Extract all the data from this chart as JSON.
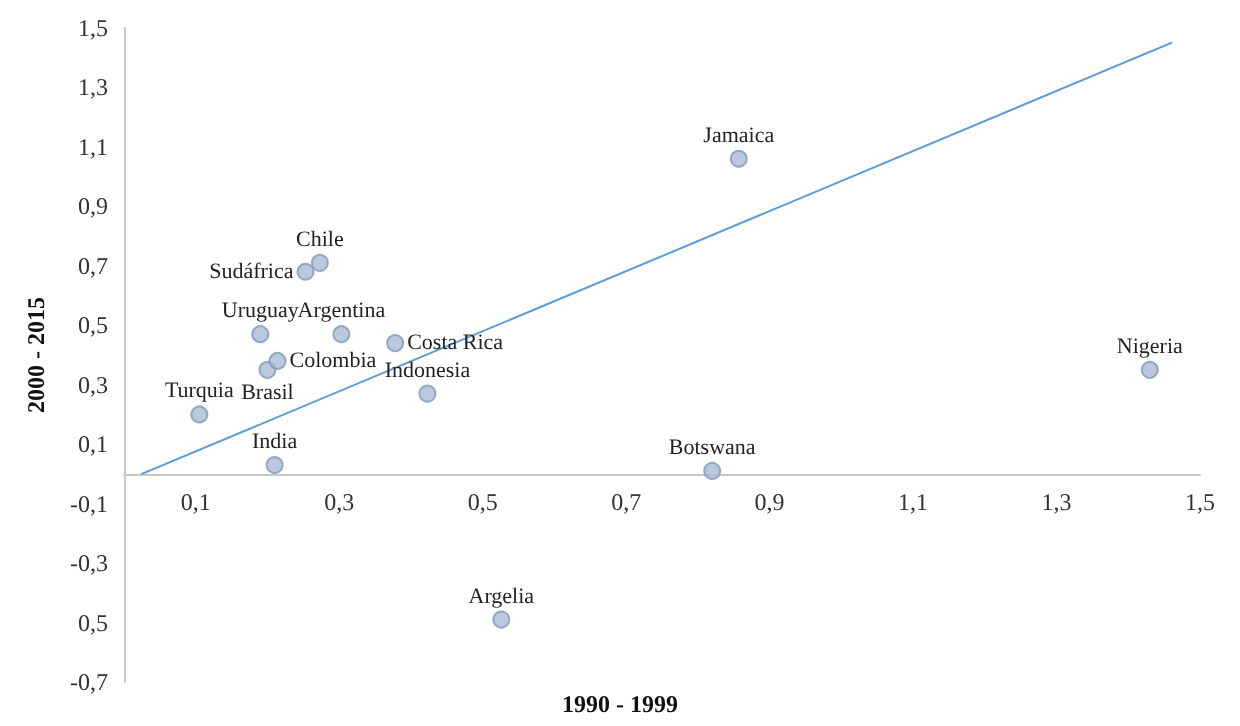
{
  "chart_data": {
    "type": "scatter",
    "xlabel": "1990 - 1999",
    "ylabel": "2000 - 2015",
    "xlim": [
      0,
      1.5
    ],
    "xticks": [
      {
        "value": 0.1,
        "label": "0,1"
      },
      {
        "value": 0.3,
        "label": "0,3"
      },
      {
        "value": 0.5,
        "label": "0,5"
      },
      {
        "value": 0.7,
        "label": "0,7"
      },
      {
        "value": 0.9,
        "label": "0,9"
      },
      {
        "value": 1.1,
        "label": "1,1"
      },
      {
        "value": 1.3,
        "label": "1,3"
      },
      {
        "value": 1.5,
        "label": "1,5"
      }
    ],
    "ylim": [
      -0.7,
      1.5
    ],
    "yticks": [
      {
        "value": 1.5,
        "label": "1,5"
      },
      {
        "value": 1.3,
        "label": "1,3"
      },
      {
        "value": 1.1,
        "label": "1,1"
      },
      {
        "value": 0.9,
        "label": "0,9"
      },
      {
        "value": 0.7,
        "label": "0,7"
      },
      {
        "value": 0.5,
        "label": "0,5"
      },
      {
        "value": 0.3,
        "label": "0,3"
      },
      {
        "value": 0.1,
        "label": "0,1"
      },
      {
        "value": -0.1,
        "label": "-0,1"
      },
      {
        "value": -0.3,
        "label": "-0,3"
      },
      {
        "value": -0.5,
        "label": "0,5"
      },
      {
        "value": -0.7,
        "label": "-0,7"
      }
    ],
    "grid": false,
    "marker": "circle",
    "series": [
      {
        "color": "#a9bcd4",
        "x": [
          0.857,
          1.43,
          0.82,
          0.526,
          0.21,
          0.105,
          0.2,
          0.214,
          0.19,
          0.253,
          0.273,
          0.303,
          0.378,
          0.423
        ],
        "values": [
          1.06,
          0.35,
          0.01,
          -0.49,
          0.03,
          0.2,
          0.35,
          0.38,
          0.47,
          0.68,
          0.71,
          0.47,
          0.44,
          0.27
        ]
      },
      {
        "type": "line",
        "marker": "none",
        "color": "#5b9bd5",
        "x": [
          0.025,
          1.46
        ],
        "values": [
          0,
          1.45
        ]
      }
    ],
    "annotations": [
      {
        "text": "Jamaica",
        "x": 0.857,
        "y": 1.06
      },
      {
        "text": "Nigeria",
        "x": 1.43,
        "y": 0.35
      },
      {
        "text": "Botswana",
        "x": 0.82,
        "y": 0.01
      },
      {
        "text": "Argelia",
        "x": 0.526,
        "y": -0.49
      },
      {
        "text": "India",
        "x": 0.21,
        "y": 0.03
      },
      {
        "text": "Turquia",
        "x": 0.105,
        "y": 0.2
      },
      {
        "text": "Brasil",
        "x": 0.2,
        "y": 0.35
      },
      {
        "text": "Colombia",
        "x": 0.214,
        "y": 0.38
      },
      {
        "text": "Uruguay",
        "x": 0.19,
        "y": 0.47
      },
      {
        "text": "Sudáfrica",
        "x": 0.253,
        "y": 0.68
      },
      {
        "text": "Chile",
        "x": 0.273,
        "y": 0.71
      },
      {
        "text": "Argentina",
        "x": 0.303,
        "y": 0.47
      },
      {
        "text": "Costa Rica",
        "x": 0.378,
        "y": 0.44
      },
      {
        "text": "Indonesia",
        "x": 0.423,
        "y": 0.27
      }
    ]
  }
}
